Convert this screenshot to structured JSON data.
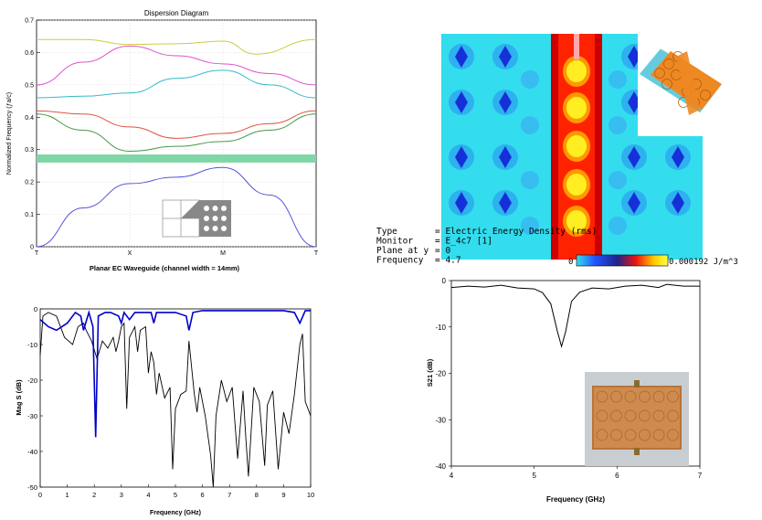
{
  "dispersion": {
    "title": "Dispersion Diagram",
    "caption": "Planar EC Waveguide (channel width = 14mm)",
    "ylabel": "Normalized Frequency (ƒa/c)",
    "yticks": [
      "0",
      "0.1",
      "0.2",
      "0.3",
      "0.4",
      "0.5",
      "0.6",
      "0.7"
    ],
    "xticks": [
      "T",
      "X",
      "M",
      "T"
    ]
  },
  "magplot": {
    "xlabel": "Frequency (GHz)",
    "ylabel": "Mag S (dB)",
    "xticks": [
      "0",
      "1",
      "2",
      "3",
      "4",
      "5",
      "6",
      "7",
      "8",
      "9",
      "10"
    ],
    "yticks": [
      "0",
      "-10",
      "-20",
      "-30",
      "-40",
      "-50"
    ]
  },
  "field": {
    "lines": [
      {
        "key": "Type",
        "value": "= Electric Energy Density (rms)"
      },
      {
        "key": "Monitor",
        "value": "= E_4c7 [1]"
      },
      {
        "key": "Plane at y",
        "value": "= 0"
      },
      {
        "key": "Frequency",
        "value": "= 4.7"
      }
    ],
    "scale_min": "0",
    "scale_max": "0.000192 J/m^3"
  },
  "s21": {
    "xlabel": "Frequency (GHz)",
    "ylabel": "S21 (dB)",
    "xticks": [
      "4",
      "5",
      "6",
      "7"
    ],
    "yticks": [
      "0",
      "-10",
      "-20",
      "-30",
      "-40"
    ]
  },
  "chart_data": [
    {
      "type": "line",
      "title": "Dispersion Diagram",
      "ylabel": "Normalized Frequency (ƒa/c)",
      "x": [
        "T",
        "X",
        "M",
        "T"
      ],
      "ylim": [
        0,
        0.7
      ],
      "band_gap": [
        0.26,
        0.285
      ],
      "series": [
        {
          "color": "#5555dd",
          "points": [
            [
              0,
              0.0
            ],
            [
              0.5,
              0.12
            ],
            [
              1,
              0.195
            ],
            [
              1.5,
              0.215
            ],
            [
              2,
              0.245
            ],
            [
              2.5,
              0.16
            ],
            [
              3,
              0.0
            ]
          ]
        },
        {
          "color": "#449944",
          "points": [
            [
              0,
              0.41
            ],
            [
              0.5,
              0.36
            ],
            [
              1,
              0.295
            ],
            [
              1.5,
              0.31
            ],
            [
              2,
              0.325
            ],
            [
              2.5,
              0.36
            ],
            [
              3,
              0.41
            ]
          ]
        },
        {
          "color": "#dd5544",
          "points": [
            [
              0,
              0.42
            ],
            [
              0.5,
              0.41
            ],
            [
              1,
              0.37
            ],
            [
              1.5,
              0.335
            ],
            [
              2,
              0.35
            ],
            [
              2.5,
              0.38
            ],
            [
              3,
              0.42
            ]
          ]
        },
        {
          "color": "#33bbcc",
          "points": [
            [
              0,
              0.46
            ],
            [
              0.5,
              0.465
            ],
            [
              1,
              0.475
            ],
            [
              1.5,
              0.52
            ],
            [
              2,
              0.545
            ],
            [
              2.5,
              0.5
            ],
            [
              3,
              0.46
            ]
          ]
        },
        {
          "color": "#dd55cc",
          "points": [
            [
              0,
              0.5
            ],
            [
              0.5,
              0.57
            ],
            [
              1,
              0.62
            ],
            [
              1.5,
              0.59
            ],
            [
              2,
              0.565
            ],
            [
              2.5,
              0.535
            ],
            [
              3,
              0.5
            ]
          ]
        },
        {
          "color": "#cccc44",
          "points": [
            [
              0,
              0.64
            ],
            [
              0.5,
              0.64
            ],
            [
              1,
              0.625
            ],
            [
              1.5,
              0.627
            ],
            [
              2,
              0.635
            ],
            [
              2.35,
              0.595
            ],
            [
              3,
              0.64
            ]
          ]
        }
      ]
    },
    {
      "type": "line",
      "xlabel": "Frequency (GHz)",
      "ylabel": "Mag S (dB)",
      "xlim": [
        0,
        10
      ],
      "ylim": [
        -50,
        0
      ],
      "series": [
        {
          "color": "#0000cc",
          "points": [
            [
              0,
              -3
            ],
            [
              0.3,
              -5
            ],
            [
              0.6,
              -6
            ],
            [
              1,
              -4
            ],
            [
              1.3,
              -1
            ],
            [
              1.5,
              -2
            ],
            [
              1.6,
              -6
            ],
            [
              1.8,
              -1
            ],
            [
              1.95,
              -5
            ],
            [
              2.05,
              -36
            ],
            [
              2.15,
              -2
            ],
            [
              2.4,
              -1
            ],
            [
              2.6,
              -1
            ],
            [
              2.9,
              -2
            ],
            [
              3.0,
              -4
            ],
            [
              3.1,
              -1
            ],
            [
              3.3,
              -3
            ],
            [
              3.5,
              -1
            ],
            [
              4.1,
              -1
            ],
            [
              4.2,
              -4
            ],
            [
              4.3,
              -1
            ],
            [
              5.0,
              -1
            ],
            [
              5.4,
              -2
            ],
            [
              5.5,
              -6
            ],
            [
              5.65,
              -1
            ],
            [
              6.0,
              -0.5
            ],
            [
              7,
              -0.5
            ],
            [
              8,
              -0.5
            ],
            [
              9,
              -0.5
            ],
            [
              9.4,
              -1
            ],
            [
              9.6,
              -4
            ],
            [
              9.8,
              -0.5
            ],
            [
              10,
              -0.5
            ]
          ]
        },
        {
          "color": "#000000",
          "points": [
            [
              0,
              -13
            ],
            [
              0.1,
              -2
            ],
            [
              0.3,
              -1
            ],
            [
              0.6,
              -2
            ],
            [
              0.9,
              -8
            ],
            [
              1.2,
              -10
            ],
            [
              1.4,
              -5
            ],
            [
              1.6,
              -4
            ],
            [
              1.7,
              -6
            ],
            [
              1.9,
              -9
            ],
            [
              2.1,
              -14
            ],
            [
              2.3,
              -9
            ],
            [
              2.5,
              -11
            ],
            [
              2.7,
              -8
            ],
            [
              2.8,
              -12
            ],
            [
              2.9,
              -9
            ],
            [
              3.0,
              -5
            ],
            [
              3.1,
              -4
            ],
            [
              3.2,
              -28
            ],
            [
              3.3,
              -8
            ],
            [
              3.5,
              -5
            ],
            [
              3.6,
              -12
            ],
            [
              3.7,
              -6
            ],
            [
              3.9,
              -5
            ],
            [
              4.0,
              -18
            ],
            [
              4.1,
              -12
            ],
            [
              4.2,
              -15
            ],
            [
              4.3,
              -24
            ],
            [
              4.4,
              -18
            ],
            [
              4.6,
              -25
            ],
            [
              4.8,
              -22
            ],
            [
              4.9,
              -45
            ],
            [
              5.0,
              -28
            ],
            [
              5.2,
              -24
            ],
            [
              5.4,
              -23
            ],
            [
              5.5,
              -9
            ],
            [
              5.7,
              -24
            ],
            [
              5.8,
              -29
            ],
            [
              5.9,
              -22
            ],
            [
              6.1,
              -30
            ],
            [
              6.3,
              -41
            ],
            [
              6.4,
              -52
            ],
            [
              6.5,
              -30
            ],
            [
              6.7,
              -20
            ],
            [
              6.9,
              -26
            ],
            [
              7.1,
              -22
            ],
            [
              7.3,
              -42
            ],
            [
              7.5,
              -23
            ],
            [
              7.6,
              -36
            ],
            [
              7.7,
              -47
            ],
            [
              7.9,
              -22
            ],
            [
              8.1,
              -26
            ],
            [
              8.3,
              -44
            ],
            [
              8.4,
              -27
            ],
            [
              8.6,
              -23
            ],
            [
              8.8,
              -45
            ],
            [
              9.0,
              -29
            ],
            [
              9.2,
              -35
            ],
            [
              9.4,
              -24
            ],
            [
              9.6,
              -10
            ],
            [
              9.7,
              -7
            ],
            [
              9.8,
              -26
            ],
            [
              10,
              -30
            ]
          ]
        }
      ]
    },
    {
      "type": "line",
      "xlabel": "Frequency (GHz)",
      "ylabel": "S21 (dB)",
      "xlim": [
        4,
        7
      ],
      "ylim": [
        -40,
        0
      ],
      "series": [
        {
          "color": "#000000",
          "points": [
            [
              4.0,
              -1.5
            ],
            [
              4.2,
              -1.2
            ],
            [
              4.4,
              -1.4
            ],
            [
              4.6,
              -1.0
            ],
            [
              4.8,
              -1.6
            ],
            [
              5.0,
              -1.8
            ],
            [
              5.1,
              -2.6
            ],
            [
              5.2,
              -5
            ],
            [
              5.28,
              -11
            ],
            [
              5.33,
              -14.2
            ],
            [
              5.38,
              -11
            ],
            [
              5.45,
              -4.5
            ],
            [
              5.55,
              -2.5
            ],
            [
              5.7,
              -1.6
            ],
            [
              5.9,
              -1.8
            ],
            [
              6.1,
              -1.2
            ],
            [
              6.3,
              -1.0
            ],
            [
              6.5,
              -1.5
            ],
            [
              6.6,
              -0.8
            ],
            [
              6.8,
              -1.2
            ],
            [
              7.0,
              -1.2
            ]
          ]
        }
      ]
    }
  ]
}
